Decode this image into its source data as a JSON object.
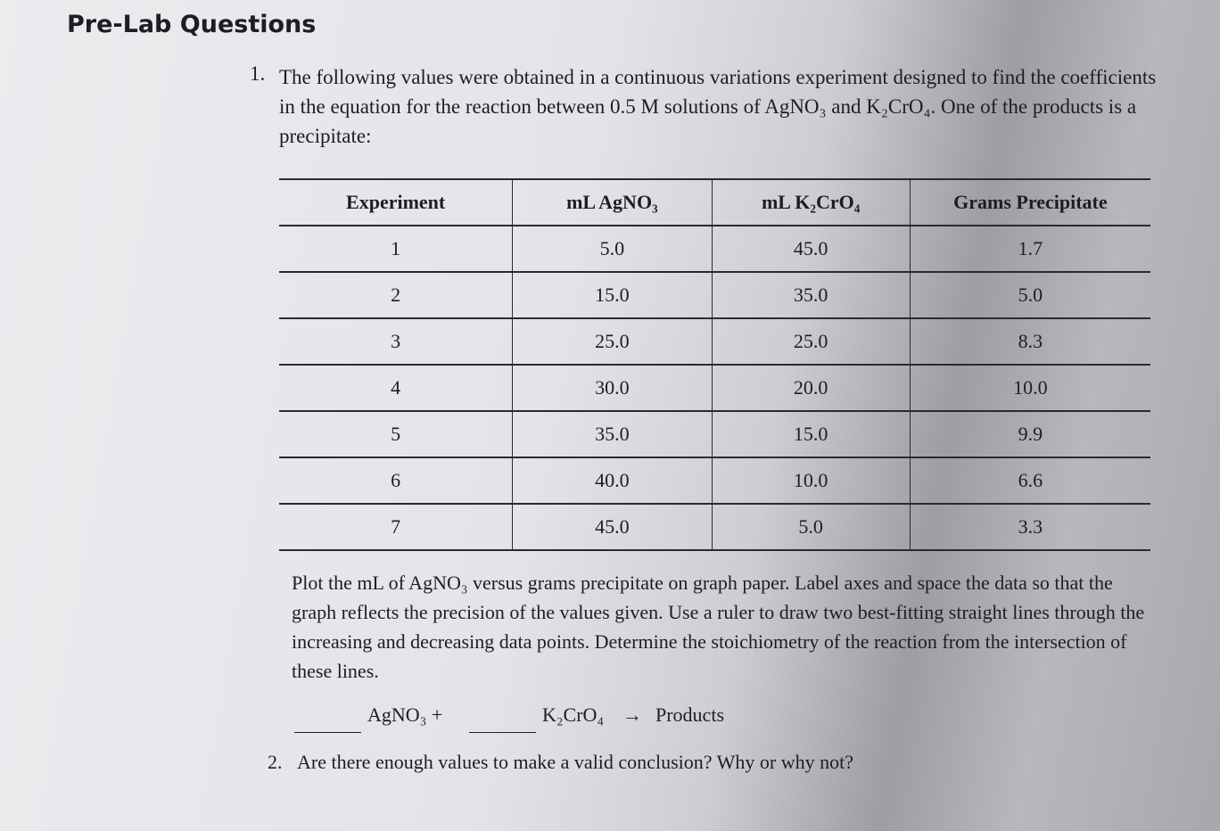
{
  "header": {
    "title": "Pre-Lab Questions"
  },
  "question1": {
    "number": "1.",
    "text": "The following values were obtained in a continuous variations experiment designed to find the coefficients in the equation for the reaction between 0.5 M solutions of AgNO₃ and K₂CrO₄. One of the products is a precipitate:"
  },
  "table": {
    "columns": [
      "Experiment",
      "mL AgNO₃",
      "mL K₂CrO₄",
      "Grams Precipitate"
    ],
    "rows": [
      [
        "1",
        "5.0",
        "45.0",
        "1.7"
      ],
      [
        "2",
        "15.0",
        "35.0",
        "5.0"
      ],
      [
        "3",
        "25.0",
        "25.0",
        "8.3"
      ],
      [
        "4",
        "30.0",
        "20.0",
        "10.0"
      ],
      [
        "5",
        "35.0",
        "15.0",
        "9.9"
      ],
      [
        "6",
        "40.0",
        "10.0",
        "6.6"
      ],
      [
        "7",
        "45.0",
        "5.0",
        "3.3"
      ]
    ]
  },
  "instructions": "Plot the mL of AgNO₃ versus grams precipitate on graph paper. Label axes and space the data so that the graph reflects the precision of the values given. Use a ruler to draw two best-fitting straight lines through the increasing and decreasing data points. Determine the stoichiometry of the reaction from the intersection of these lines.",
  "equation": {
    "reactant1": "AgNO₃ +",
    "reactant2": "K₂CrO₄",
    "arrow": "→",
    "product": "Products"
  },
  "question2": {
    "number": "2.",
    "text": "Are there enough values to make a valid conclusion? Why or why not?"
  }
}
